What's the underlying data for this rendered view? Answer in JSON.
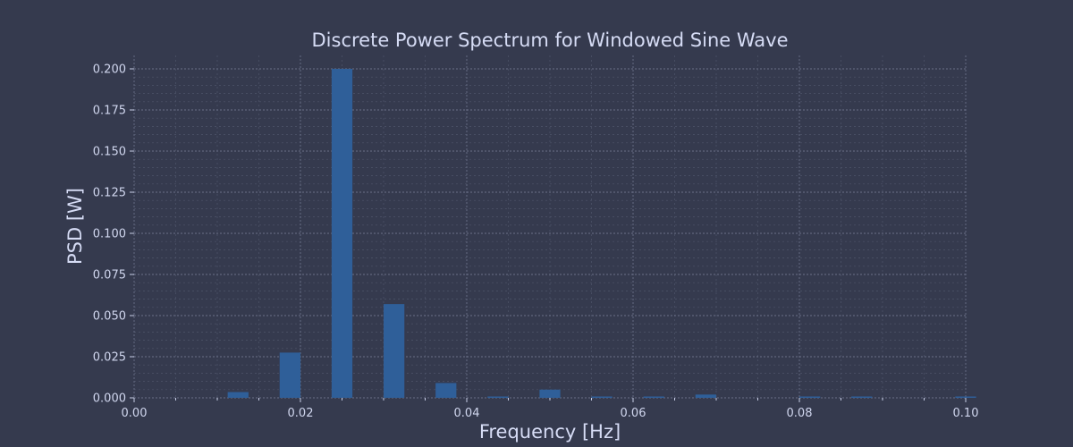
{
  "chart_data": {
    "type": "bar",
    "title": "Discrete Power Spectrum for Windowed Sine Wave",
    "xlabel": "Frequency [Hz]",
    "ylabel": "PSD [W]",
    "xlim": [
      0.0,
      0.1
    ],
    "ylim": [
      0.0,
      0.2
    ],
    "x_ticks": [
      "0.00",
      "0.02",
      "0.04",
      "0.06",
      "0.08",
      "0.10"
    ],
    "y_ticks": [
      "0.000",
      "0.025",
      "0.050",
      "0.075",
      "0.100",
      "0.125",
      "0.150",
      "0.175",
      "0.200"
    ],
    "grid": true,
    "bar_color": "#2f5f99",
    "background_color": "#353a4e",
    "x": [
      0.0,
      0.00625,
      0.0125,
      0.01875,
      0.025,
      0.03125,
      0.0375,
      0.04375,
      0.05,
      0.05625,
      0.0625,
      0.06875,
      0.075,
      0.08125,
      0.0875,
      0.09375,
      0.1
    ],
    "values": [
      0.0,
      0.0,
      0.0035,
      0.0275,
      0.2,
      0.057,
      0.009,
      0.0008,
      0.005,
      0.0004,
      0.0008,
      0.002,
      0.0,
      0.0008,
      0.0004,
      0.0,
      0.0008
    ]
  }
}
